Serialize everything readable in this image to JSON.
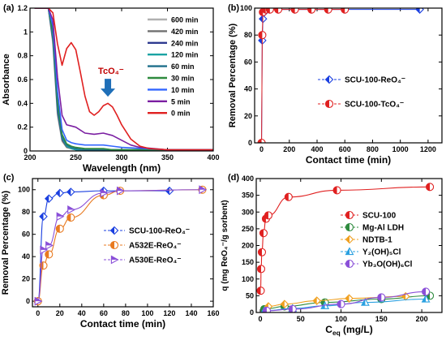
{
  "chart_data": [
    {
      "panel": "(a)",
      "type": "line",
      "xlabel": "Wavelength (nm)",
      "ylabel": "Absorbance",
      "xlim": [
        200,
        400
      ],
      "ylim": [
        0,
        1.2
      ],
      "xticks": [
        200,
        250,
        300,
        350,
        400
      ],
      "yticks": [
        0.0,
        0.2,
        0.4,
        0.6,
        0.8,
        1.0,
        1.2
      ],
      "annotation": "TcO₄⁻",
      "legend_position": "top-right",
      "series": [
        {
          "name": "600 min",
          "color": "#b0b0b0",
          "x": [
            205,
            210,
            215,
            220,
            225,
            230,
            235,
            240,
            245,
            250,
            260,
            270,
            280,
            290,
            300,
            350,
            400
          ],
          "y": [
            1.2,
            1.2,
            1.2,
            1.2,
            0.9,
            0.3,
            0.08,
            0.03,
            0.02,
            0.01,
            0.01,
            0.01,
            0.01,
            0.01,
            0.01,
            0.01,
            0.01
          ]
        },
        {
          "name": "420 min",
          "color": "#707070",
          "x": [
            205,
            210,
            215,
            220,
            225,
            230,
            235,
            240,
            245,
            250,
            260,
            270,
            280,
            290,
            300,
            350,
            400
          ],
          "y": [
            1.2,
            1.2,
            1.2,
            1.2,
            0.92,
            0.32,
            0.09,
            0.03,
            0.02,
            0.01,
            0.01,
            0.01,
            0.01,
            0.01,
            0.01,
            0.01,
            0.01
          ]
        },
        {
          "name": "240 min",
          "color": "#2e3a8f",
          "x": [
            205,
            210,
            215,
            220,
            225,
            230,
            235,
            240,
            245,
            250,
            260,
            270,
            280,
            290,
            300,
            350,
            400
          ],
          "y": [
            1.2,
            1.2,
            1.2,
            1.2,
            0.94,
            0.34,
            0.1,
            0.04,
            0.02,
            0.01,
            0.01,
            0.01,
            0.01,
            0.01,
            0.01,
            0.01,
            0.01
          ]
        },
        {
          "name": "120 min",
          "color": "#1aa3a3",
          "x": [
            205,
            210,
            215,
            220,
            225,
            230,
            235,
            240,
            245,
            250,
            260,
            270,
            280,
            290,
            300,
            350,
            400
          ],
          "y": [
            1.2,
            1.2,
            1.2,
            1.2,
            0.96,
            0.36,
            0.11,
            0.04,
            0.02,
            0.01,
            0.01,
            0.01,
            0.01,
            0.01,
            0.01,
            0.01,
            0.01
          ]
        },
        {
          "name": "60 min",
          "color": "#1f6f8b",
          "x": [
            205,
            210,
            215,
            220,
            225,
            230,
            235,
            240,
            245,
            250,
            260,
            270,
            280,
            290,
            300,
            350,
            400
          ],
          "y": [
            1.2,
            1.2,
            1.2,
            1.2,
            0.98,
            0.38,
            0.12,
            0.05,
            0.03,
            0.02,
            0.01,
            0.01,
            0.01,
            0.01,
            0.01,
            0.01,
            0.01
          ]
        },
        {
          "name": "30 min",
          "color": "#2e8b3e",
          "x": [
            205,
            210,
            215,
            220,
            225,
            230,
            235,
            240,
            245,
            250,
            260,
            270,
            280,
            290,
            300,
            350,
            400
          ],
          "y": [
            1.2,
            1.2,
            1.2,
            1.2,
            1.0,
            0.42,
            0.14,
            0.06,
            0.04,
            0.03,
            0.02,
            0.02,
            0.02,
            0.01,
            0.01,
            0.01,
            0.01
          ]
        },
        {
          "name": "10 min",
          "color": "#3366ff",
          "x": [
            205,
            210,
            215,
            220,
            225,
            230,
            235,
            240,
            245,
            250,
            260,
            270,
            280,
            290,
            300,
            350,
            400
          ],
          "y": [
            1.2,
            1.2,
            1.2,
            1.2,
            1.05,
            0.5,
            0.18,
            0.09,
            0.07,
            0.06,
            0.05,
            0.05,
            0.05,
            0.04,
            0.03,
            0.01,
            0.01
          ]
        },
        {
          "name": "5 min",
          "color": "#7b1fa2",
          "x": [
            205,
            210,
            215,
            220,
            225,
            230,
            235,
            240,
            245,
            250,
            260,
            270,
            280,
            290,
            300,
            310,
            320,
            350,
            400
          ],
          "y": [
            1.2,
            1.2,
            1.2,
            1.2,
            1.1,
            0.62,
            0.3,
            0.22,
            0.21,
            0.2,
            0.15,
            0.14,
            0.15,
            0.13,
            0.09,
            0.05,
            0.03,
            0.01,
            0.01
          ]
        },
        {
          "name": "0 min",
          "color": "#e02020",
          "x": [
            205,
            210,
            215,
            220,
            225,
            230,
            235,
            240,
            245,
            250,
            255,
            260,
            265,
            270,
            275,
            280,
            285,
            290,
            295,
            300,
            310,
            320,
            330,
            350,
            400
          ],
          "y": [
            1.2,
            1.2,
            1.2,
            1.2,
            1.16,
            0.9,
            0.72,
            0.86,
            0.91,
            0.85,
            0.66,
            0.46,
            0.33,
            0.3,
            0.33,
            0.38,
            0.4,
            0.37,
            0.3,
            0.22,
            0.1,
            0.04,
            0.02,
            0.01,
            0.01
          ]
        }
      ]
    },
    {
      "panel": "(b)",
      "type": "line",
      "xlabel": "Contact time (min)",
      "ylabel": "Removal Percentage (%)",
      "xlim": [
        -50,
        1300
      ],
      "ylim": [
        0,
        100
      ],
      "xticks": [
        0,
        200,
        400,
        600,
        800,
        1000,
        1200
      ],
      "yticks": [
        0,
        20,
        40,
        60,
        80,
        100
      ],
      "legend_position": "center-right",
      "series": [
        {
          "name": "SCU-100-ReO₄⁻",
          "color": "#1a3fe0",
          "marker": "diamond",
          "x": [
            0,
            5,
            10,
            20,
            30,
            60,
            120,
            240,
            360,
            480,
            600,
            1140
          ],
          "y": [
            0,
            76,
            92,
            97,
            98,
            99,
            99,
            99,
            99,
            99,
            99,
            99
          ]
        },
        {
          "name": "SCU-100-TcO₄⁻",
          "color": "#e02020",
          "marker": "circle-half",
          "x": [
            0,
            5,
            10,
            30,
            60,
            120,
            240,
            360,
            480,
            600
          ],
          "y": [
            0,
            80,
            97,
            99,
            99,
            99,
            99,
            99,
            99,
            99
          ]
        }
      ]
    },
    {
      "panel": "(c)",
      "type": "line",
      "xlabel": "Contact time (min)",
      "ylabel": "Removal Percentage (%)",
      "xlim": [
        -5,
        160
      ],
      "ylim": [
        -5,
        110
      ],
      "xticks": [
        0,
        20,
        40,
        60,
        80,
        100,
        120,
        140,
        160
      ],
      "yticks": [
        0,
        20,
        40,
        60,
        80,
        100
      ],
      "legend_position": "center-right",
      "series": [
        {
          "name": "SCU-100-ReO₄⁻",
          "color": "#1a3fe0",
          "marker": "diamond",
          "x": [
            0,
            5,
            10,
            20,
            30,
            60,
            120
          ],
          "y": [
            0,
            76,
            92,
            97,
            98,
            99,
            99
          ]
        },
        {
          "name": "A532E-ReO₄⁻",
          "color": "#e87a20",
          "marker": "circle-half",
          "x": [
            0,
            5,
            10,
            20,
            30,
            60,
            75,
            150
          ],
          "y": [
            0,
            32,
            42,
            65,
            75,
            95,
            99,
            100
          ]
        },
        {
          "name": "A530E-ReO₄⁻",
          "color": "#8a4fd8",
          "marker": "triangle-right",
          "x": [
            0,
            5,
            10,
            20,
            30,
            60,
            75,
            150
          ],
          "y": [
            0,
            46,
            50,
            76,
            82,
            97,
            99,
            100
          ]
        }
      ]
    },
    {
      "panel": "(d)",
      "type": "scatter",
      "xlabel": "C_eq (mg/L)",
      "ylabel": "q (mg ReO₄⁻/g sorbent)",
      "xlim": [
        -5,
        225
      ],
      "ylim": [
        0,
        400
      ],
      "xticks": [
        0,
        50,
        100,
        150,
        200
      ],
      "yticks": [
        0,
        50,
        100,
        150,
        200,
        250,
        300,
        350,
        400
      ],
      "legend_position": "center-right",
      "series": [
        {
          "name": "SCU-100",
          "color": "#e02020",
          "marker": "circle-half",
          "x": [
            0.5,
            1,
            2,
            4,
            7,
            10,
            35,
            95,
            210
          ],
          "y": [
            65,
            130,
            180,
            237,
            280,
            290,
            345,
            365,
            375
          ]
        },
        {
          "name": "Mg-Al LDH",
          "color": "#2e8b3e",
          "marker": "circle-half",
          "x": [
            5,
            30,
            80,
            150,
            210
          ],
          "y": [
            10,
            18,
            30,
            40,
            50
          ]
        },
        {
          "name": "NDTB-1",
          "color": "#f0a020",
          "marker": "diamond",
          "x": [
            10,
            30,
            70,
            110,
            180
          ],
          "y": [
            18,
            25,
            35,
            42,
            48
          ]
        },
        {
          "name": "Y₂(OH)₅Cl",
          "color": "#2aa0e0",
          "marker": "triangle",
          "x": [
            5,
            40,
            80,
            130,
            205
          ],
          "y": [
            5,
            12,
            20,
            30,
            40
          ]
        },
        {
          "name": "Yb₃O(OH)₆Cl",
          "color": "#8a4fd8",
          "marker": "circle-half",
          "x": [
            8,
            40,
            100,
            150,
            205
          ],
          "y": [
            5,
            10,
            25,
            45,
            62
          ]
        }
      ]
    }
  ]
}
